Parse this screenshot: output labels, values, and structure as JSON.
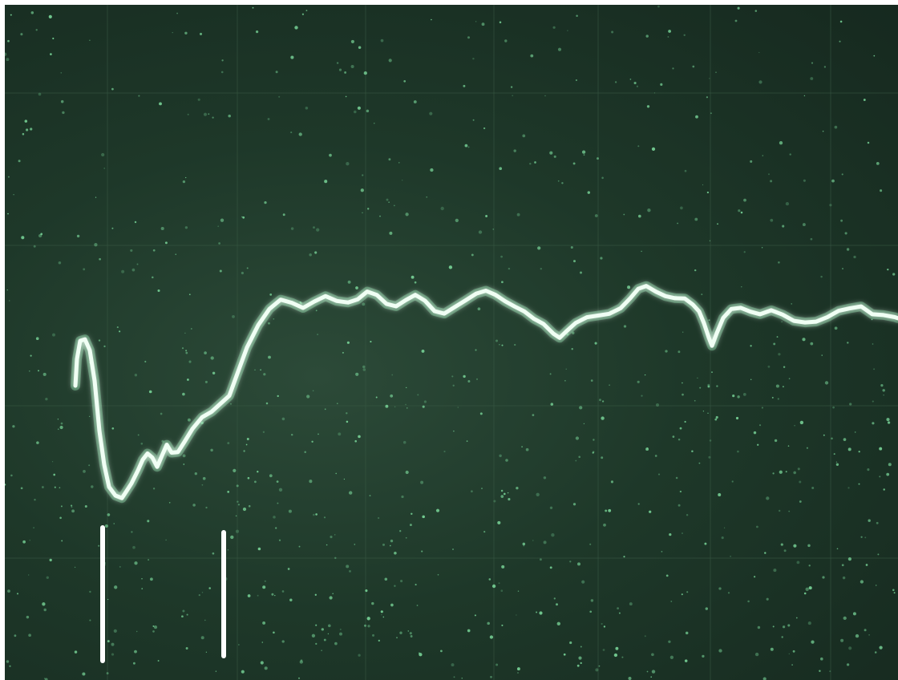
{
  "photo": {
    "subject": "oscilloscope-trace",
    "colors": {
      "phosphor_bg": "#1e3829",
      "graticule": "#3a5a45",
      "noise": "#7fe0a0",
      "trace_glow": "#8af0b0",
      "trace_core": "#f0fff4",
      "marker": "#ffffff"
    },
    "markers_count": 2
  }
}
